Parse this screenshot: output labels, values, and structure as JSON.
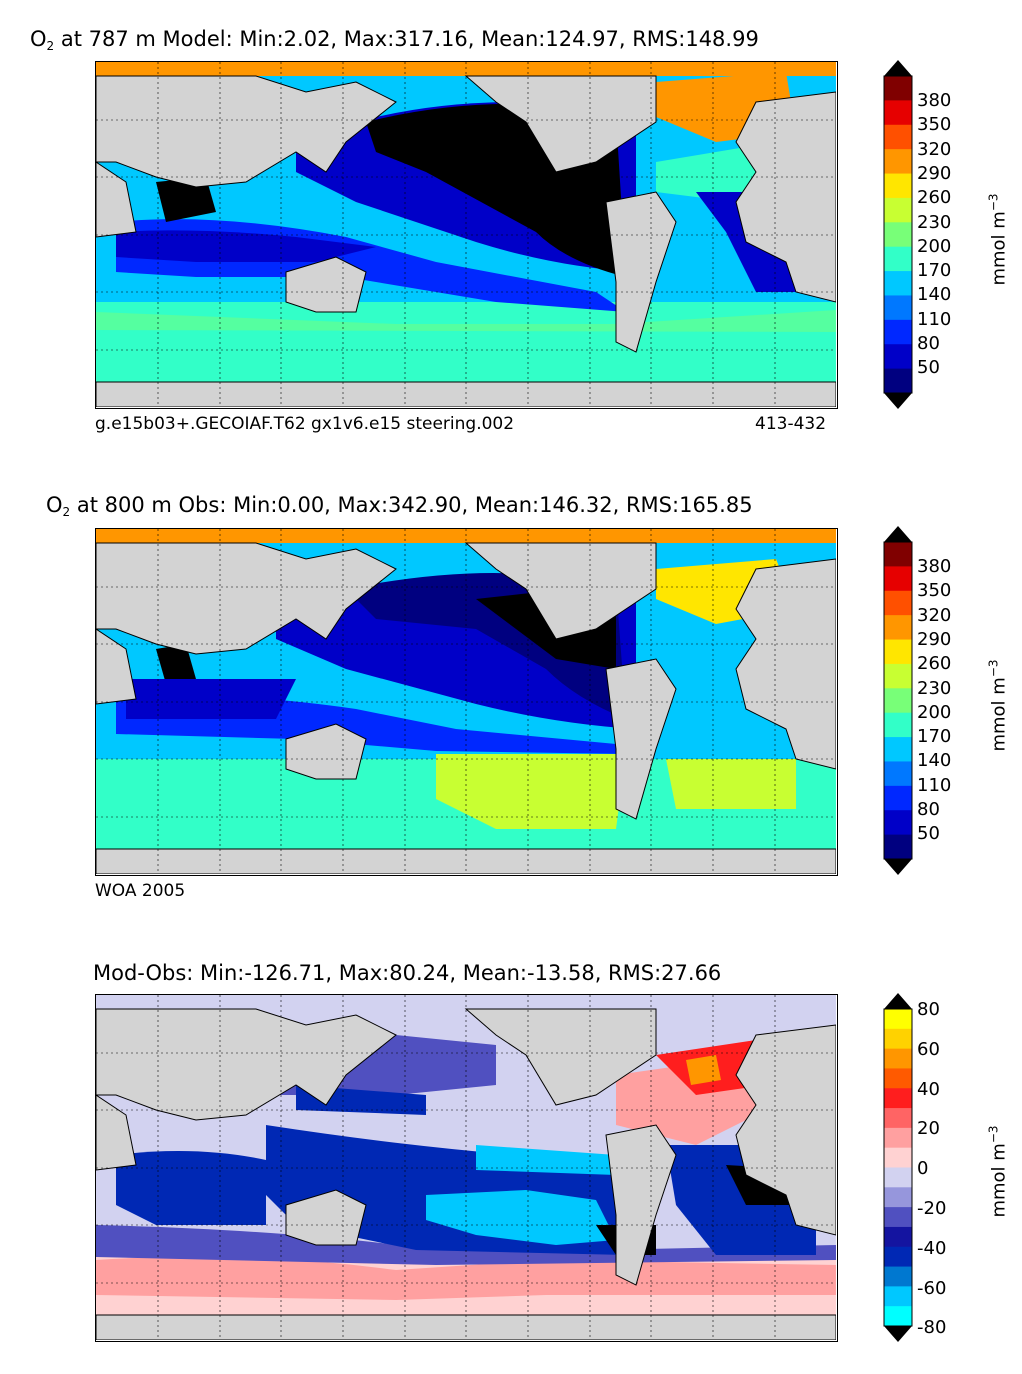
{
  "panels": [
    {
      "title_prefix": "O",
      "title_sub": "2",
      "title_rest": "at 787 m Model: Min:2.02, Max:317.16, Mean:124.97, RMS:148.99",
      "caption_left": "g.e15b03+.GECOIAF.T62 gx1v6.e15 steering.002",
      "caption_right": "413-432",
      "colorbar_ticks": [
        "380",
        "350",
        "320",
        "290",
        "260",
        "230",
        "200",
        "170",
        "140",
        "110",
        "80",
        "50"
      ],
      "units": "mmol m",
      "units_sup": "−3"
    },
    {
      "title_prefix": "O",
      "title_sub": "2",
      "title_rest": "at 800 m Obs: Min:0.00, Max:342.90, Mean:146.32, RMS:165.85",
      "caption_left": "WOA 2005",
      "caption_right": "",
      "colorbar_ticks": [
        "380",
        "350",
        "320",
        "290",
        "260",
        "230",
        "200",
        "170",
        "140",
        "110",
        "80",
        "50"
      ],
      "units": "mmol m",
      "units_sup": "−3"
    },
    {
      "title_prefix": "",
      "title_sub": "",
      "title_rest": "Mod-Obs: Min:-126.71, Max:80.24, Mean:-13.58, RMS:27.66",
      "caption_left": "",
      "caption_right": "",
      "colorbar_ticks": [
        "80",
        "60",
        "40",
        "20",
        "0",
        "-20",
        "-40",
        "-60",
        "-80"
      ],
      "units": "mmol m",
      "units_sup": "−3"
    }
  ],
  "colors": {
    "land": "#d3d3d3",
    "ice": "#ffffff",
    "o2_scale": [
      "#000080",
      "#0000c8",
      "#0028ff",
      "#0078ff",
      "#00c8ff",
      "#32ffc8",
      "#78ff78",
      "#c8ff32",
      "#ffe600",
      "#ff9600",
      "#ff5000",
      "#e60000",
      "#800000"
    ],
    "diff_scale": [
      "#00ffff",
      "#00c8ff",
      "#0078d0",
      "#0028b4",
      "#1414a0",
      "#5050c0",
      "#9696dc",
      "#d2d2f0",
      "#ffd2d2",
      "#ffa0a0",
      "#ff6464",
      "#ff1e1e",
      "#ff5a00",
      "#ff9600",
      "#ffd200",
      "#ffff00"
    ]
  },
  "chart_data": [
    {
      "type": "heatmap",
      "title": "O2 at 787 m Model: Min:2.02, Max:317.16, Mean:124.97, RMS:148.99",
      "colorbar_label": "mmol m−3",
      "colorbar_ticks": [
        380,
        350,
        320,
        290,
        260,
        230,
        200,
        170,
        140,
        110,
        80,
        50
      ],
      "stats": {
        "min": 2.02,
        "max": 317.16,
        "mean": 124.97,
        "rms": 148.99
      },
      "caption": "g.e15b03+.GECOIAF.T62 gx1v6.e15 steering.002",
      "years": "413-432"
    },
    {
      "type": "heatmap",
      "title": "O2 at 800 m Obs: Min:0.00, Max:342.90, Mean:146.32, RMS:165.85",
      "colorbar_label": "mmol m−3",
      "colorbar_ticks": [
        380,
        350,
        320,
        290,
        260,
        230,
        200,
        170,
        140,
        110,
        80,
        50
      ],
      "stats": {
        "min": 0.0,
        "max": 342.9,
        "mean": 146.32,
        "rms": 165.85
      },
      "caption": "WOA 2005"
    },
    {
      "type": "heatmap",
      "title": "Mod-Obs: Min:-126.71, Max:80.24, Mean:-13.58, RMS:27.66",
      "colorbar_label": "mmol m−3",
      "colorbar_ticks": [
        80,
        60,
        40,
        20,
        0,
        -20,
        -40,
        -60,
        -80
      ],
      "stats": {
        "min": -126.71,
        "max": 80.24,
        "mean": -13.58,
        "rms": 27.66
      }
    }
  ]
}
